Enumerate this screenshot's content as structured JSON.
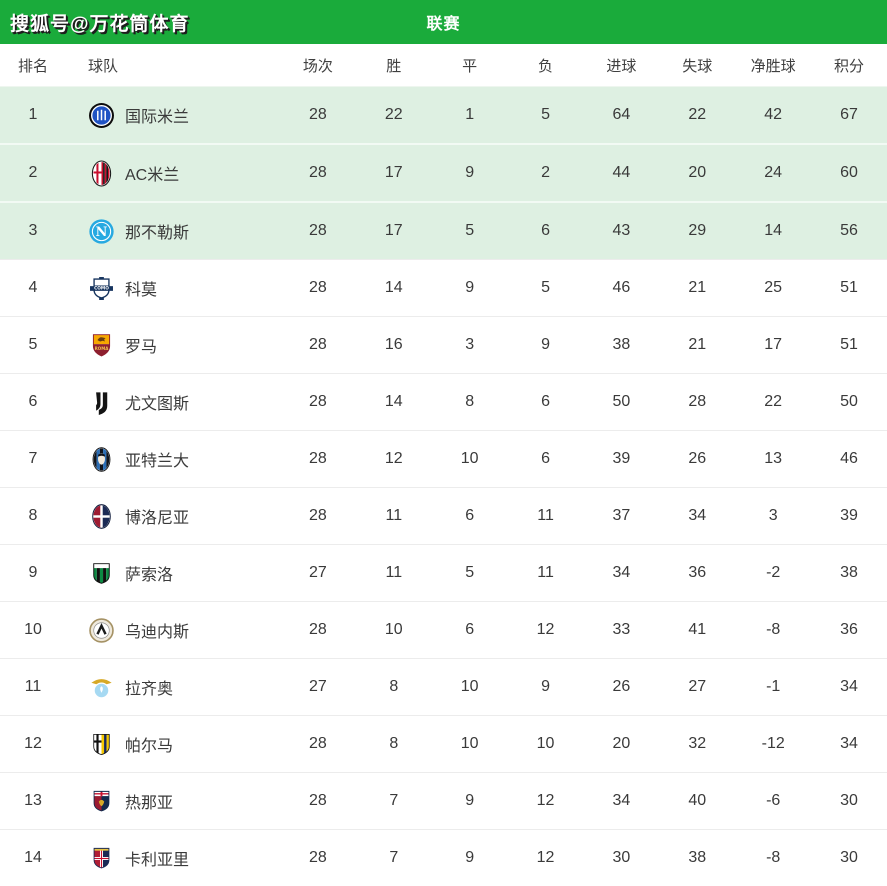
{
  "header": {
    "watermark": "搜狐号@万花筒体育",
    "title": "联赛",
    "bar_color": "#1aab3b"
  },
  "table": {
    "highlight_color": "#def0e2",
    "columns": [
      {
        "key": "rank",
        "label": "排名"
      },
      {
        "key": "team",
        "label": "球队"
      },
      {
        "key": "played",
        "label": "场次"
      },
      {
        "key": "won",
        "label": "胜"
      },
      {
        "key": "drawn",
        "label": "平"
      },
      {
        "key": "lost",
        "label": "负"
      },
      {
        "key": "gf",
        "label": "进球"
      },
      {
        "key": "ga",
        "label": "失球"
      },
      {
        "key": "gd",
        "label": "净胜球"
      },
      {
        "key": "pts",
        "label": "积分"
      }
    ],
    "rows": [
      {
        "rank": 1,
        "team": "国际米兰",
        "logo": "inter-logo",
        "played": 28,
        "won": 22,
        "drawn": 1,
        "lost": 5,
        "gf": 64,
        "ga": 22,
        "gd": 42,
        "pts": 67,
        "highlight": true
      },
      {
        "rank": 2,
        "team": "AC米兰",
        "logo": "acmilan-logo",
        "played": 28,
        "won": 17,
        "drawn": 9,
        "lost": 2,
        "gf": 44,
        "ga": 20,
        "gd": 24,
        "pts": 60,
        "highlight": true
      },
      {
        "rank": 3,
        "team": "那不勒斯",
        "logo": "napoli-logo",
        "played": 28,
        "won": 17,
        "drawn": 5,
        "lost": 6,
        "gf": 43,
        "ga": 29,
        "gd": 14,
        "pts": 56,
        "highlight": true
      },
      {
        "rank": 4,
        "team": "科莫",
        "logo": "como-logo",
        "played": 28,
        "won": 14,
        "drawn": 9,
        "lost": 5,
        "gf": 46,
        "ga": 21,
        "gd": 25,
        "pts": 51,
        "highlight": false
      },
      {
        "rank": 5,
        "team": "罗马",
        "logo": "roma-logo",
        "played": 28,
        "won": 16,
        "drawn": 3,
        "lost": 9,
        "gf": 38,
        "ga": 21,
        "gd": 17,
        "pts": 51,
        "highlight": false
      },
      {
        "rank": 6,
        "team": "尤文图斯",
        "logo": "juventus-logo",
        "played": 28,
        "won": 14,
        "drawn": 8,
        "lost": 6,
        "gf": 50,
        "ga": 28,
        "gd": 22,
        "pts": 50,
        "highlight": false
      },
      {
        "rank": 7,
        "team": "亚特兰大",
        "logo": "atalanta-logo",
        "played": 28,
        "won": 12,
        "drawn": 10,
        "lost": 6,
        "gf": 39,
        "ga": 26,
        "gd": 13,
        "pts": 46,
        "highlight": false
      },
      {
        "rank": 8,
        "team": "博洛尼亚",
        "logo": "bologna-logo",
        "played": 28,
        "won": 11,
        "drawn": 6,
        "lost": 11,
        "gf": 37,
        "ga": 34,
        "gd": 3,
        "pts": 39,
        "highlight": false
      },
      {
        "rank": 9,
        "team": "萨索洛",
        "logo": "sassuolo-logo",
        "played": 27,
        "won": 11,
        "drawn": 5,
        "lost": 11,
        "gf": 34,
        "ga": 36,
        "gd": -2,
        "pts": 38,
        "highlight": false
      },
      {
        "rank": 10,
        "team": "乌迪内斯",
        "logo": "udinese-logo",
        "played": 28,
        "won": 10,
        "drawn": 6,
        "lost": 12,
        "gf": 33,
        "ga": 41,
        "gd": -8,
        "pts": 36,
        "highlight": false
      },
      {
        "rank": 11,
        "team": "拉齐奥",
        "logo": "lazio-logo",
        "played": 27,
        "won": 8,
        "drawn": 10,
        "lost": 9,
        "gf": 26,
        "ga": 27,
        "gd": -1,
        "pts": 34,
        "highlight": false
      },
      {
        "rank": 12,
        "team": "帕尔马",
        "logo": "parma-logo",
        "played": 28,
        "won": 8,
        "drawn": 10,
        "lost": 10,
        "gf": 20,
        "ga": 32,
        "gd": -12,
        "pts": 34,
        "highlight": false
      },
      {
        "rank": 13,
        "team": "热那亚",
        "logo": "genoa-logo",
        "played": 28,
        "won": 7,
        "drawn": 9,
        "lost": 12,
        "gf": 34,
        "ga": 40,
        "gd": -6,
        "pts": 30,
        "highlight": false
      },
      {
        "rank": 14,
        "team": "卡利亚里",
        "logo": "cagliari-logo",
        "played": 28,
        "won": 7,
        "drawn": 9,
        "lost": 12,
        "gf": 30,
        "ga": 38,
        "gd": -8,
        "pts": 30,
        "highlight": false
      }
    ]
  }
}
